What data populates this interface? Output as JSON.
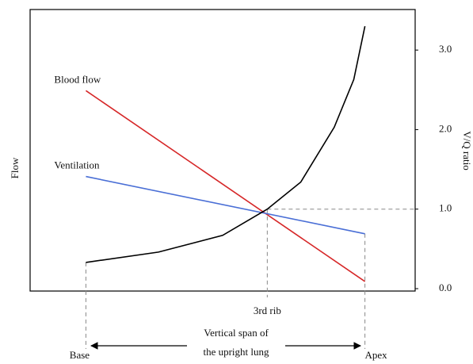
{
  "chart_data": {
    "type": "line",
    "xticks": [
      {
        "value": 0,
        "label": "Base"
      },
      {
        "value": 0.65,
        "label": "3rd rib"
      },
      {
        "value": 1,
        "label": "Apex"
      }
    ],
    "xlim": [
      -0.2,
      1.18
    ],
    "ylim": [
      -0.03,
      3.51
    ],
    "yticks": [
      {
        "value": 0,
        "label": "0.0"
      },
      {
        "value": 1,
        "label": "1.0"
      },
      {
        "value": 2,
        "label": "2.0"
      },
      {
        "value": 3,
        "label": "3.0"
      }
    ],
    "ylabel_left": "Flow",
    "ylabel_right": "V/Q ratio",
    "annotation": [
      "Vertical span of",
      "the upright lung"
    ],
    "series": [
      {
        "name": "Blood flow",
        "color": "#d62728",
        "x": [
          0,
          1
        ],
        "values": [
          2.49,
          0.09
        ]
      },
      {
        "name": "Ventilation",
        "color": "#4a6fd6",
        "x": [
          0,
          1
        ],
        "values": [
          1.41,
          0.69
        ]
      },
      {
        "color": "#000000",
        "x": [
          0,
          0.26,
          0.49,
          0.65,
          0.77,
          0.89,
          0.96,
          1
        ],
        "values": [
          0.33,
          0.46,
          0.67,
          1.0,
          1.34,
          2.03,
          2.63,
          3.3
        ]
      }
    ]
  }
}
